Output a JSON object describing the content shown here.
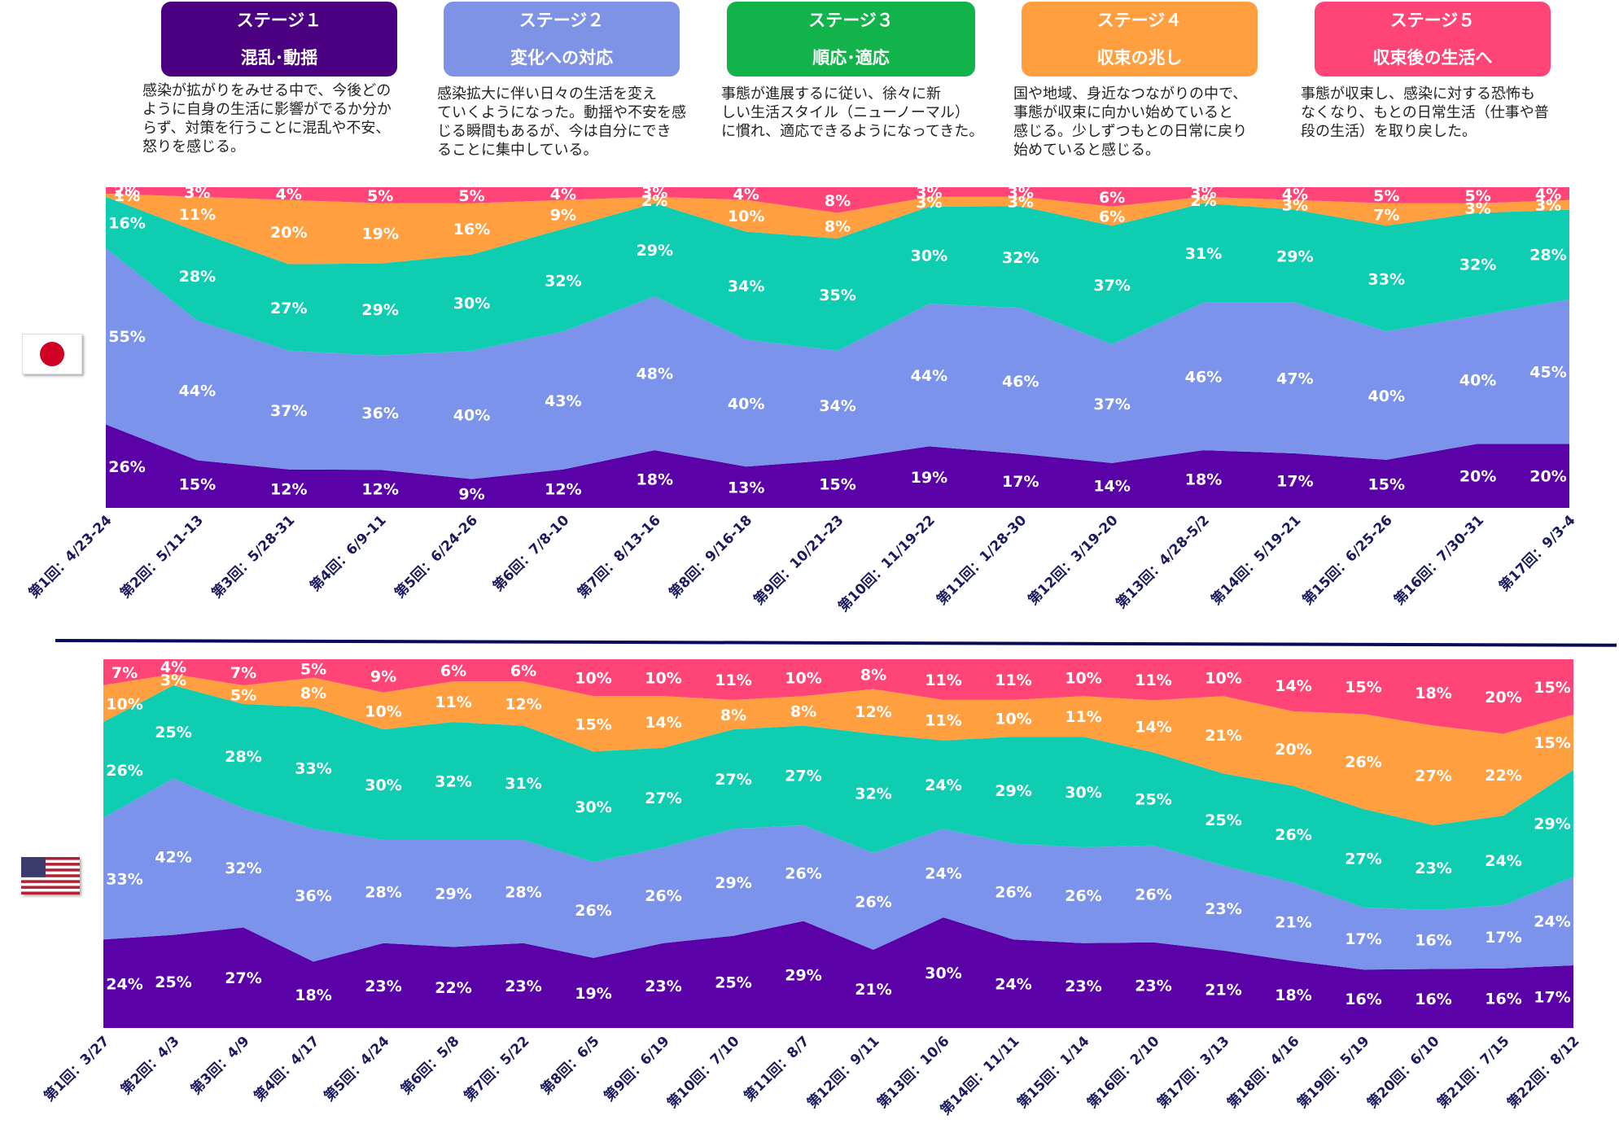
{
  "stages": [
    {
      "title": "ステージ１",
      "subtitle": "混乱･動揺",
      "color": "#4b0082",
      "desc_lines": [
        "感染が拡がりをみせる中で、今後どの",
        "ように自身の生活に影響がでるか分か",
        "らず、対策を行うことに混乱や不安、",
        "怒りを感じる。"
      ]
    },
    {
      "title": "ステージ２",
      "subtitle": "変化への対応",
      "color": "#7f93e6",
      "desc_lines": [
        "感染拡大に伴い日々の生活を変え",
        "ていくようになった。動揺や不安を感",
        "じる瞬間もあるが、今は自分にでき",
        "ることに集中している。"
      ]
    },
    {
      "title": "ステージ３",
      "subtitle": "順応･適応",
      "color": "#11b34a",
      "desc_lines": [
        "事態が進展するに従い、徐々に新",
        "しい生活スタイル（ニューノーマル）",
        "に慣れ、適応できるようになってきた。"
      ]
    },
    {
      "title": "ステージ４",
      "subtitle": "収束の兆し",
      "color": "#ff9f40",
      "desc_lines": [
        "国や地域、身近なつながりの中で、",
        "事態が収束に向かい始めていると",
        "感じる。少しずつもとの日常に戻り",
        "始めていると感じる。"
      ]
    },
    {
      "title": "ステージ５",
      "subtitle": "収束後の生活へ",
      "color": "#ff4577",
      "desc_lines": [
        "事態が収束し、感染に対する恐怖も",
        "なくなり、もとの日常生活（仕事や普",
        "段の生活）を取り戻した。"
      ]
    }
  ],
  "colors": {
    "s1": "#5a02a8",
    "s2": "#7b93ea",
    "s3": "#0fcdb1",
    "s4": "#ff9f40",
    "s5": "#ff4577"
  },
  "flags": {
    "top": "japan-flag",
    "bottom": "usa-flag"
  },
  "chart_data": [
    {
      "type": "area",
      "country": "Japan",
      "categories": [
        "第1回：4/23-24",
        "第2回：5/11-13",
        "第3回：5/28-31",
        "第4回：6/9-11",
        "第5回：6/24-26",
        "第6回：7/8-10",
        "第7回：8/13-16",
        "第8回：9/16-18",
        "第9回：10/21-23",
        "第10回：11/19-22",
        "第11回：1/28-30",
        "第12回：3/19-20",
        "第13回：4/28-5/2",
        "第14回：5/19-21",
        "第15回：6/25-26",
        "第16回：7/30-31",
        "第17回：9/3-4"
      ],
      "series": [
        {
          "name": "ステージ１",
          "values": [
            26,
            15,
            12,
            12,
            9,
            12,
            18,
            13,
            15,
            19,
            17,
            14,
            18,
            17,
            15,
            20,
            20
          ]
        },
        {
          "name": "ステージ２",
          "values": [
            55,
            44,
            37,
            36,
            40,
            43,
            48,
            40,
            34,
            44,
            46,
            37,
            46,
            47,
            40,
            40,
            45
          ]
        },
        {
          "name": "ステージ３",
          "values": [
            16,
            28,
            27,
            29,
            30,
            32,
            29,
            34,
            35,
            30,
            32,
            37,
            31,
            29,
            33,
            32,
            28
          ]
        },
        {
          "name": "ステージ４",
          "values": [
            1,
            11,
            20,
            19,
            16,
            9,
            2,
            10,
            8,
            3,
            3,
            6,
            2,
            3,
            7,
            3,
            3
          ]
        },
        {
          "name": "ステージ５",
          "values": [
            2,
            3,
            4,
            5,
            5,
            4,
            3,
            4,
            8,
            3,
            3,
            6,
            3,
            4,
            5,
            5,
            4
          ]
        }
      ],
      "ylim": [
        0,
        100
      ]
    },
    {
      "type": "area",
      "country": "USA",
      "categories": [
        "第1回：3/27",
        "第2回：4/3",
        "第3回：4/9",
        "第4回：4/17",
        "第5回：4/24",
        "第6回：5/8",
        "第7回：5/22",
        "第8回：6/5",
        "第9回：6/19",
        "第10回：7/10",
        "第11回：8/7",
        "第12回：9/11",
        "第13回：10/6",
        "第14回：11/11",
        "第15回：1/14",
        "第16回：2/10",
        "第17回：3/13",
        "第18回：4/16",
        "第19回：5/19",
        "第20回：6/10",
        "第21回：7/15",
        "第22回：8/12"
      ],
      "series": [
        {
          "name": "ステージ１",
          "values": [
            24,
            25,
            27,
            18,
            23,
            22,
            23,
            19,
            23,
            25,
            29,
            21,
            30,
            24,
            23,
            23,
            21,
            18,
            16,
            16,
            16,
            17
          ]
        },
        {
          "name": "ステージ２",
          "values": [
            33,
            42,
            32,
            36,
            28,
            29,
            28,
            26,
            26,
            29,
            26,
            26,
            24,
            26,
            26,
            26,
            23,
            21,
            17,
            16,
            17,
            24
          ]
        },
        {
          "name": "ステージ３",
          "values": [
            26,
            25,
            28,
            33,
            30,
            32,
            31,
            30,
            27,
            27,
            27,
            32,
            24,
            29,
            30,
            25,
            25,
            26,
            27,
            23,
            24,
            29
          ]
        },
        {
          "name": "ステージ４",
          "values": [
            10,
            3,
            5,
            8,
            10,
            11,
            12,
            15,
            14,
            8,
            8,
            12,
            11,
            10,
            11,
            14,
            21,
            20,
            26,
            27,
            22,
            15
          ]
        },
        {
          "name": "ステージ５",
          "values": [
            7,
            4,
            7,
            5,
            9,
            6,
            6,
            10,
            10,
            11,
            10,
            8,
            11,
            11,
            10,
            11,
            10,
            14,
            15,
            18,
            20,
            15
          ]
        }
      ],
      "ylim": [
        0,
        100
      ]
    }
  ]
}
